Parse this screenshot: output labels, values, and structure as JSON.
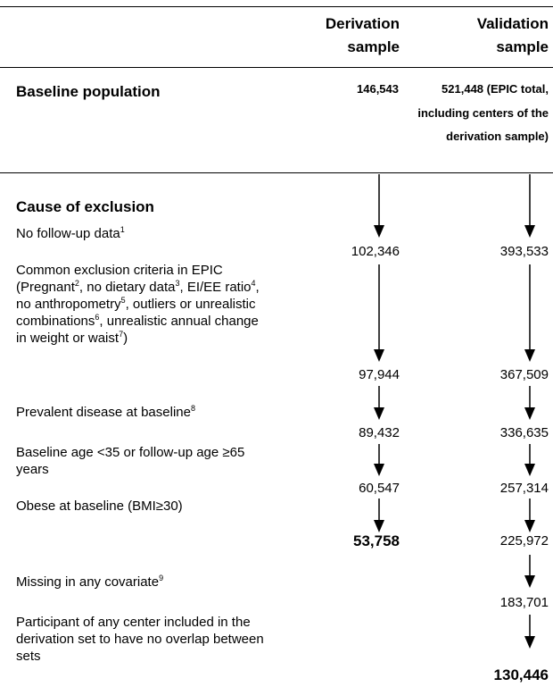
{
  "header": {
    "derivation": "Derivation sample",
    "validation": "Validation sample"
  },
  "baseline": {
    "label": "Baseline population",
    "derivation": "146,543",
    "validation": "521,448 (EPIC total, including centers of the derivation sample)"
  },
  "exclusion": {
    "title": "Cause of exclusion",
    "steps": [
      {
        "lines": [
          [
            {
              "text": "No follow-up data"
            },
            {
              "sup": "1"
            }
          ]
        ],
        "derivation": "102,346",
        "validation": "393,533"
      },
      {
        "lines": [
          [
            {
              "text": "Common exclusion criteria in EPIC"
            }
          ],
          [
            {
              "text": "(Pregnant"
            },
            {
              "sup": "2"
            },
            {
              "text": ", no dietary data"
            },
            {
              "sup": "3"
            },
            {
              "text": ", EI/EE ratio"
            },
            {
              "sup": "4"
            },
            {
              "text": ","
            }
          ],
          [
            {
              "text": "no anthropometry"
            },
            {
              "sup": "5"
            },
            {
              "text": ", outliers or unrealistic"
            }
          ],
          [
            {
              "text": "combinations"
            },
            {
              "sup": "6"
            },
            {
              "text": ", unrealistic annual change"
            }
          ],
          [
            {
              "text": "in weight or waist"
            },
            {
              "sup": "7"
            },
            {
              "text": ")"
            }
          ]
        ],
        "derivation": "97,944",
        "validation": "367,509"
      },
      {
        "lines": [
          [
            {
              "text": "Prevalent disease at baseline"
            },
            {
              "sup": "8"
            }
          ]
        ],
        "derivation": "89,432",
        "validation": "336,635"
      },
      {
        "lines": [
          [
            {
              "text": "Baseline age <35 or follow-up age ≥65"
            }
          ],
          [
            {
              "text": "years"
            }
          ]
        ],
        "derivation": "60,547",
        "validation": "257,314"
      },
      {
        "lines": [
          [
            {
              "text": "Obese at baseline (BMI≥30)"
            }
          ]
        ],
        "derivation": "53,758",
        "validation": "225,972"
      },
      {
        "lines": [
          [
            {
              "text": "Missing in any covariate"
            },
            {
              "sup": "9"
            }
          ]
        ],
        "validation": "183,701"
      },
      {
        "lines": [
          [
            {
              "text": "Participant of any center included in the"
            }
          ],
          [
            {
              "text": "derivation set to have no overlap between"
            }
          ],
          [
            {
              "text": "sets"
            }
          ]
        ],
        "validation": "130,446"
      }
    ]
  }
}
